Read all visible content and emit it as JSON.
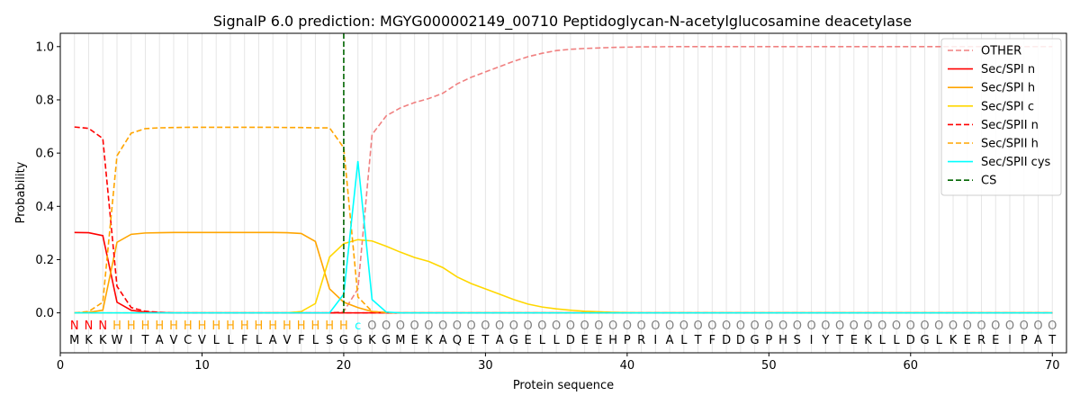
{
  "chart_data": {
    "type": "line",
    "title": "SignalP 6.0 prediction: MGYG000002149_00710 Peptidoglycan-N-acetylglucosamine deacetylase",
    "xlabel": "Protein sequence",
    "ylabel": "Probability",
    "xlim": [
      0,
      71
    ],
    "ylim": [
      -0.15,
      1.05
    ],
    "x_ticks": [
      0,
      10,
      20,
      30,
      40,
      50,
      60,
      70
    ],
    "y_ticks": [
      0.0,
      0.2,
      0.4,
      0.6,
      0.8,
      1.0
    ],
    "y_tick_labels": [
      "0.0",
      "0.2",
      "0.4",
      "0.6",
      "0.8",
      "1.0"
    ],
    "grid": "vertical lines at each residue",
    "legend_position": "top-right",
    "cleavage_site": 20,
    "sequence": [
      "M",
      "K",
      "K",
      "W",
      "I",
      "T",
      "A",
      "V",
      "C",
      "V",
      "L",
      "L",
      "F",
      "L",
      "A",
      "V",
      "F",
      "L",
      "S",
      "G",
      "G",
      "K",
      "G",
      "M",
      "E",
      "K",
      "A",
      "Q",
      "E",
      "T",
      "A",
      "G",
      "E",
      "L",
      "L",
      "D",
      "E",
      "E",
      "H",
      "P",
      "R",
      "I",
      "A",
      "L",
      "T",
      "F",
      "D",
      "D",
      "G",
      "P",
      "H",
      "S",
      "I",
      "Y",
      "T",
      "E",
      "K",
      "L",
      "L",
      "D",
      "G",
      "L",
      "K",
      "E",
      "R",
      "E",
      "I",
      "P",
      "A",
      "T"
    ],
    "region_labels": [
      "N",
      "N",
      "N",
      "H",
      "H",
      "H",
      "H",
      "H",
      "H",
      "H",
      "H",
      "H",
      "H",
      "H",
      "H",
      "H",
      "H",
      "H",
      "H",
      "H",
      "c",
      "O",
      "O",
      "O",
      "O",
      "O",
      "O",
      "O",
      "O",
      "O",
      "O",
      "O",
      "O",
      "O",
      "O",
      "O",
      "O",
      "O",
      "O",
      "O",
      "O",
      "O",
      "O",
      "O",
      "O",
      "O",
      "O",
      "O",
      "O",
      "O",
      "O",
      "O",
      "O",
      "O",
      "O",
      "O",
      "O",
      "O",
      "O",
      "O",
      "O",
      "O",
      "O",
      "O",
      "O",
      "O",
      "O",
      "O",
      "O",
      "O"
    ],
    "region_colors": {
      "N": "#ff0000",
      "H": "#ffa500",
      "c": "#00ffff",
      "O": "#808080"
    },
    "series": [
      {
        "name": "OTHER",
        "color": "#f08080",
        "dash": true,
        "values": [
          0.0,
          0.0,
          0.0,
          0.0,
          0.0,
          0.0,
          0.0,
          0.0,
          0.0,
          0.0,
          0.0,
          0.0,
          0.0,
          0.0,
          0.0,
          0.0,
          0.0,
          0.0,
          0.0,
          0.005,
          0.09,
          0.67,
          0.74,
          0.77,
          0.79,
          0.805,
          0.825,
          0.86,
          0.885,
          0.905,
          0.925,
          0.945,
          0.962,
          0.975,
          0.985,
          0.99,
          0.993,
          0.995,
          0.997,
          0.998,
          0.999,
          0.999,
          1.0,
          1.0,
          1.0,
          1.0,
          1.0,
          1.0,
          1.0,
          1.0,
          1.0,
          1.0,
          1.0,
          1.0,
          1.0,
          1.0,
          1.0,
          1.0,
          1.0,
          1.0,
          1.0,
          1.0,
          1.0,
          1.0,
          1.0,
          1.0,
          1.0,
          1.0,
          1.0,
          1.0
        ]
      },
      {
        "name": "Sec/SPI n",
        "color": "#ff0000",
        "dash": false,
        "values": [
          0.302,
          0.301,
          0.29,
          0.04,
          0.01,
          0.003,
          0.001,
          0.0,
          0.0,
          0.0,
          0.0,
          0.0,
          0.0,
          0.0,
          0.0,
          0.0,
          0.0,
          0.0,
          0.0,
          0.0,
          0.0,
          0.0,
          0.0,
          0.0,
          0.0,
          0.0,
          0.0,
          0.0,
          0.0,
          0.0,
          0.0,
          0.0,
          0.0,
          0.0,
          0.0,
          0.0,
          0.0,
          0.0,
          0.0,
          0.0,
          0.0,
          0.0,
          0.0,
          0.0,
          0.0,
          0.0,
          0.0,
          0.0,
          0.0,
          0.0,
          0.0,
          0.0,
          0.0,
          0.0,
          0.0,
          0.0,
          0.0,
          0.0,
          0.0,
          0.0,
          0.0,
          0.0,
          0.0,
          0.0,
          0.0,
          0.0,
          0.0,
          0.0,
          0.0,
          0.0
        ]
      },
      {
        "name": "Sec/SPI h",
        "color": "#ffa500",
        "dash": false,
        "values": [
          0.0,
          0.002,
          0.01,
          0.265,
          0.295,
          0.3,
          0.301,
          0.302,
          0.302,
          0.302,
          0.302,
          0.302,
          0.302,
          0.302,
          0.302,
          0.301,
          0.298,
          0.268,
          0.09,
          0.04,
          0.02,
          0.005,
          0.001,
          0.0,
          0.0,
          0.0,
          0.0,
          0.0,
          0.0,
          0.0,
          0.0,
          0.0,
          0.0,
          0.0,
          0.0,
          0.0,
          0.0,
          0.0,
          0.0,
          0.0,
          0.0,
          0.0,
          0.0,
          0.0,
          0.0,
          0.0,
          0.0,
          0.0,
          0.0,
          0.0,
          0.0,
          0.0,
          0.0,
          0.0,
          0.0,
          0.0,
          0.0,
          0.0,
          0.0,
          0.0,
          0.0,
          0.0,
          0.0,
          0.0,
          0.0,
          0.0,
          0.0,
          0.0,
          0.0,
          0.0
        ]
      },
      {
        "name": "Sec/SPI c",
        "color": "#ffd700",
        "dash": false,
        "values": [
          0.0,
          0.0,
          0.0,
          0.0,
          0.0,
          0.0,
          0.0,
          0.0,
          0.0,
          0.0,
          0.0,
          0.0,
          0.0,
          0.0,
          0.0,
          0.0,
          0.005,
          0.035,
          0.21,
          0.26,
          0.275,
          0.27,
          0.25,
          0.228,
          0.208,
          0.193,
          0.17,
          0.135,
          0.11,
          0.09,
          0.07,
          0.05,
          0.033,
          0.022,
          0.015,
          0.01,
          0.006,
          0.004,
          0.002,
          0.001,
          0.0,
          0.0,
          0.0,
          0.0,
          0.0,
          0.0,
          0.0,
          0.0,
          0.0,
          0.0,
          0.0,
          0.0,
          0.0,
          0.0,
          0.0,
          0.0,
          0.0,
          0.0,
          0.0,
          0.0,
          0.0,
          0.0,
          0.0,
          0.0,
          0.0,
          0.0,
          0.0,
          0.0,
          0.0,
          0.0
        ]
      },
      {
        "name": "Sec/SPII n",
        "color": "#ff0000",
        "dash": true,
        "values": [
          0.698,
          0.693,
          0.655,
          0.1,
          0.02,
          0.006,
          0.002,
          0.0,
          0.0,
          0.0,
          0.0,
          0.0,
          0.0,
          0.0,
          0.0,
          0.0,
          0.0,
          0.0,
          0.0,
          0.0,
          0.0,
          0.0,
          0.0,
          0.0,
          0.0,
          0.0,
          0.0,
          0.0,
          0.0,
          0.0,
          0.0,
          0.0,
          0.0,
          0.0,
          0.0,
          0.0,
          0.0,
          0.0,
          0.0,
          0.0,
          0.0,
          0.0,
          0.0,
          0.0,
          0.0,
          0.0,
          0.0,
          0.0,
          0.0,
          0.0,
          0.0,
          0.0,
          0.0,
          0.0,
          0.0,
          0.0,
          0.0,
          0.0,
          0.0,
          0.0,
          0.0,
          0.0,
          0.0,
          0.0,
          0.0,
          0.0,
          0.0,
          0.0,
          0.0,
          0.0
        ]
      },
      {
        "name": "Sec/SPII h",
        "color": "#ffa500",
        "dash": true,
        "values": [
          0.0,
          0.005,
          0.04,
          0.59,
          0.675,
          0.692,
          0.695,
          0.696,
          0.697,
          0.697,
          0.697,
          0.697,
          0.697,
          0.697,
          0.697,
          0.696,
          0.696,
          0.695,
          0.695,
          0.62,
          0.06,
          0.005,
          0.001,
          0.0,
          0.0,
          0.0,
          0.0,
          0.0,
          0.0,
          0.0,
          0.0,
          0.0,
          0.0,
          0.0,
          0.0,
          0.0,
          0.0,
          0.0,
          0.0,
          0.0,
          0.0,
          0.0,
          0.0,
          0.0,
          0.0,
          0.0,
          0.0,
          0.0,
          0.0,
          0.0,
          0.0,
          0.0,
          0.0,
          0.0,
          0.0,
          0.0,
          0.0,
          0.0,
          0.0,
          0.0,
          0.0,
          0.0,
          0.0,
          0.0,
          0.0,
          0.0,
          0.0,
          0.0,
          0.0,
          0.0
        ]
      },
      {
        "name": "Sec/SPII cys",
        "color": "#00ffff",
        "dash": false,
        "values": [
          0.0,
          0.0,
          0.0,
          0.0,
          0.0,
          0.0,
          0.0,
          0.0,
          0.0,
          0.0,
          0.0,
          0.0,
          0.0,
          0.0,
          0.0,
          0.0,
          0.0,
          0.0,
          0.0,
          0.07,
          0.57,
          0.05,
          0.003,
          0.0,
          0.0,
          0.0,
          0.0,
          0.0,
          0.0,
          0.0,
          0.0,
          0.0,
          0.0,
          0.0,
          0.0,
          0.0,
          0.0,
          0.0,
          0.0,
          0.0,
          0.0,
          0.0,
          0.0,
          0.0,
          0.0,
          0.0,
          0.0,
          0.0,
          0.0,
          0.0,
          0.0,
          0.0,
          0.0,
          0.0,
          0.0,
          0.0,
          0.0,
          0.0,
          0.0,
          0.0,
          0.0,
          0.0,
          0.0,
          0.0,
          0.0,
          0.0,
          0.0,
          0.0,
          0.0,
          0.0
        ]
      }
    ],
    "legend": [
      {
        "name": "OTHER",
        "color": "#f08080",
        "dash": true
      },
      {
        "name": "Sec/SPI n",
        "color": "#ff0000",
        "dash": false
      },
      {
        "name": "Sec/SPI h",
        "color": "#ffa500",
        "dash": false
      },
      {
        "name": "Sec/SPI c",
        "color": "#ffd700",
        "dash": false
      },
      {
        "name": "Sec/SPII n",
        "color": "#ff0000",
        "dash": true
      },
      {
        "name": "Sec/SPII h",
        "color": "#ffa500",
        "dash": true
      },
      {
        "name": "Sec/SPII cys",
        "color": "#00ffff",
        "dash": false
      },
      {
        "name": "CS",
        "color": "#006400",
        "dash": true
      }
    ]
  }
}
